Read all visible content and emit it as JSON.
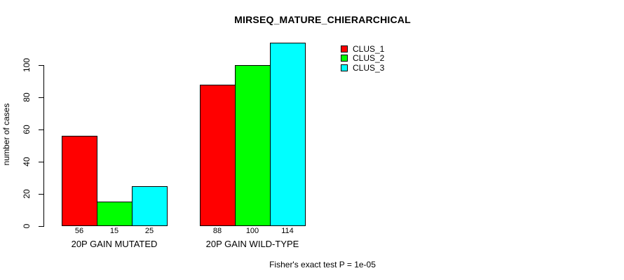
{
  "chart_data": {
    "type": "bar",
    "title": "MIRSEQ_MATURE_CHIERARCHICAL",
    "ylabel": "number of cases",
    "xlabel": "",
    "categories": [
      "20P GAIN MUTATED",
      "20P GAIN WILD-TYPE"
    ],
    "series": [
      {
        "name": "CLUS_1",
        "color": "#ff0000",
        "values": [
          56,
          88
        ]
      },
      {
        "name": "CLUS_2",
        "color": "#00ff00",
        "values": [
          15,
          100
        ]
      },
      {
        "name": "CLUS_3",
        "color": "#00ffff",
        "values": [
          25,
          114
        ]
      }
    ],
    "yticks": [
      0,
      20,
      40,
      60,
      80,
      100
    ],
    "ylim": [
      0,
      115
    ],
    "grid": false,
    "legend_position": "top-right",
    "bar_values_shown_below_bars": true,
    "annotation": "Fisher's exact test P = 1e-05"
  }
}
